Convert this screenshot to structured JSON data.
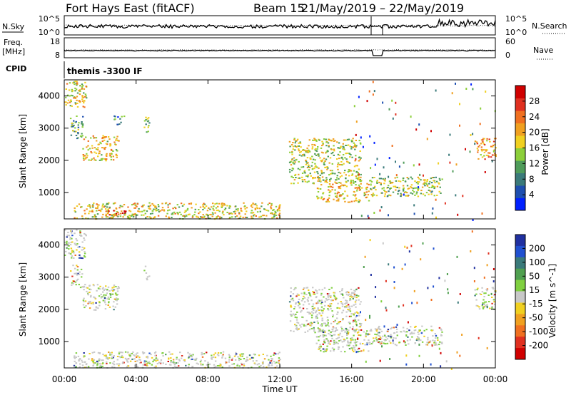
{
  "header": {
    "title": "Fort Hays East (fitACF)",
    "beam": "Beam 15",
    "dates": "21/May/2019 – 22/May/2019"
  },
  "top_panel": {
    "left_label": "N.Sky",
    "right_label": "N.Search",
    "left_ticks": [
      "10^5",
      "10^0"
    ],
    "right_ticks": [
      "10^5",
      "10^0"
    ]
  },
  "freq_panel": {
    "left_label_line1": "Freq.",
    "left_label_line2": "[MHz]",
    "right_label": "Nave",
    "left_ticks": [
      "18",
      "8"
    ],
    "right_ticks": [
      "60",
      "0"
    ]
  },
  "cpid": {
    "label": "CPID",
    "value": "themis -3300 IF"
  },
  "chart_data": [
    {
      "type": "heatmap",
      "name": "power",
      "ylabel": "Slant Range [km]",
      "xlabel": "Time UT",
      "x_ticks": [
        "00:00",
        "04:00",
        "08:00",
        "12:00",
        "16:00",
        "20:00",
        "00:00"
      ],
      "x_range_hours": [
        0,
        24
      ],
      "ylim": [
        180,
        4500
      ],
      "y_ticks": [
        1000,
        2000,
        3000,
        4000
      ],
      "colorbar": {
        "label": "Power [dB]",
        "ticks": [
          "4",
          "8",
          "12",
          "16",
          "20",
          "24",
          "28"
        ],
        "colors": [
          "#0020ff",
          "#1e4fb0",
          "#3a7a7a",
          "#4f9c5a",
          "#8ccf3a",
          "#f0d020",
          "#f0a020",
          "#f07020",
          "#e03020",
          "#d00000"
        ]
      },
      "regions": [
        {
          "t0": 0.0,
          "t1": 1.2,
          "r0": 3600,
          "r1": 4500,
          "level": 0.55
        },
        {
          "t0": 0.3,
          "t1": 1.0,
          "r0": 2700,
          "r1": 3400,
          "level": 0.35
        },
        {
          "t0": 1.0,
          "t1": 3.0,
          "r0": 2000,
          "r1": 2800,
          "level": 0.6
        },
        {
          "t0": 2.7,
          "t1": 3.3,
          "r0": 3100,
          "r1": 3400,
          "level": 0.25
        },
        {
          "t0": 4.4,
          "t1": 4.7,
          "r0": 2900,
          "r1": 3400,
          "level": 0.4
        },
        {
          "t0": 0.5,
          "t1": 12.0,
          "r0": 200,
          "r1": 700,
          "level": 0.55
        },
        {
          "t0": 2.2,
          "t1": 3.5,
          "r0": 280,
          "r1": 500,
          "level": 0.9
        },
        {
          "t0": 12.5,
          "t1": 16.5,
          "r0": 1300,
          "r1": 2700,
          "level": 0.5
        },
        {
          "t0": 14.0,
          "t1": 17.0,
          "r0": 700,
          "r1": 1400,
          "level": 0.6
        },
        {
          "t0": 17.0,
          "t1": 21.0,
          "r0": 900,
          "r1": 1500,
          "level": 0.45
        },
        {
          "t0": 22.8,
          "t1": 24.0,
          "r0": 2000,
          "r1": 2700,
          "level": 0.7
        }
      ]
    },
    {
      "type": "heatmap",
      "name": "velocity",
      "ylabel": "Slant Range [km]",
      "xlabel": "Time UT",
      "x_ticks": [
        "00:00",
        "04:00",
        "08:00",
        "12:00",
        "16:00",
        "20:00",
        "00:00"
      ],
      "x_range_hours": [
        0,
        24
      ],
      "ylim": [
        180,
        4500
      ],
      "y_ticks": [
        1000,
        2000,
        3000,
        4000
      ],
      "colorbar": {
        "label": "Velocity [m s^-1]",
        "ticks": [
          "200",
          "100",
          "50",
          "15",
          "-15",
          "-50",
          "-100",
          "-200"
        ],
        "colors": [
          "#2030a0",
          "#2050d0",
          "#3a7a7a",
          "#50a050",
          "#80d040",
          "#c8c8c8",
          "#f0d020",
          "#f0a020",
          "#f07020",
          "#e03020",
          "#d00000"
        ]
      },
      "regions": [
        {
          "t0": 0.0,
          "t1": 1.2,
          "r0": 3600,
          "r1": 4500,
          "level": 0.55
        },
        {
          "t0": 0.3,
          "t1": 1.0,
          "r0": 2700,
          "r1": 3400,
          "level": 0.5
        },
        {
          "t0": 1.0,
          "t1": 3.0,
          "r0": 2000,
          "r1": 2800,
          "level": 0.5
        },
        {
          "t0": 4.4,
          "t1": 4.7,
          "r0": 2900,
          "r1": 3400,
          "level": 0.5
        },
        {
          "t0": 0.5,
          "t1": 12.0,
          "r0": 200,
          "r1": 700,
          "level": 0.3
        },
        {
          "t0": 12.5,
          "t1": 16.5,
          "r0": 1300,
          "r1": 2700,
          "level": 0.5
        },
        {
          "t0": 14.0,
          "t1": 17.0,
          "r0": 700,
          "r1": 1400,
          "level": 0.5
        },
        {
          "t0": 17.0,
          "t1": 21.0,
          "r0": 900,
          "r1": 1500,
          "level": 0.5
        },
        {
          "t0": 22.8,
          "t1": 24.0,
          "r0": 2000,
          "r1": 2700,
          "level": 0.5
        }
      ]
    }
  ]
}
